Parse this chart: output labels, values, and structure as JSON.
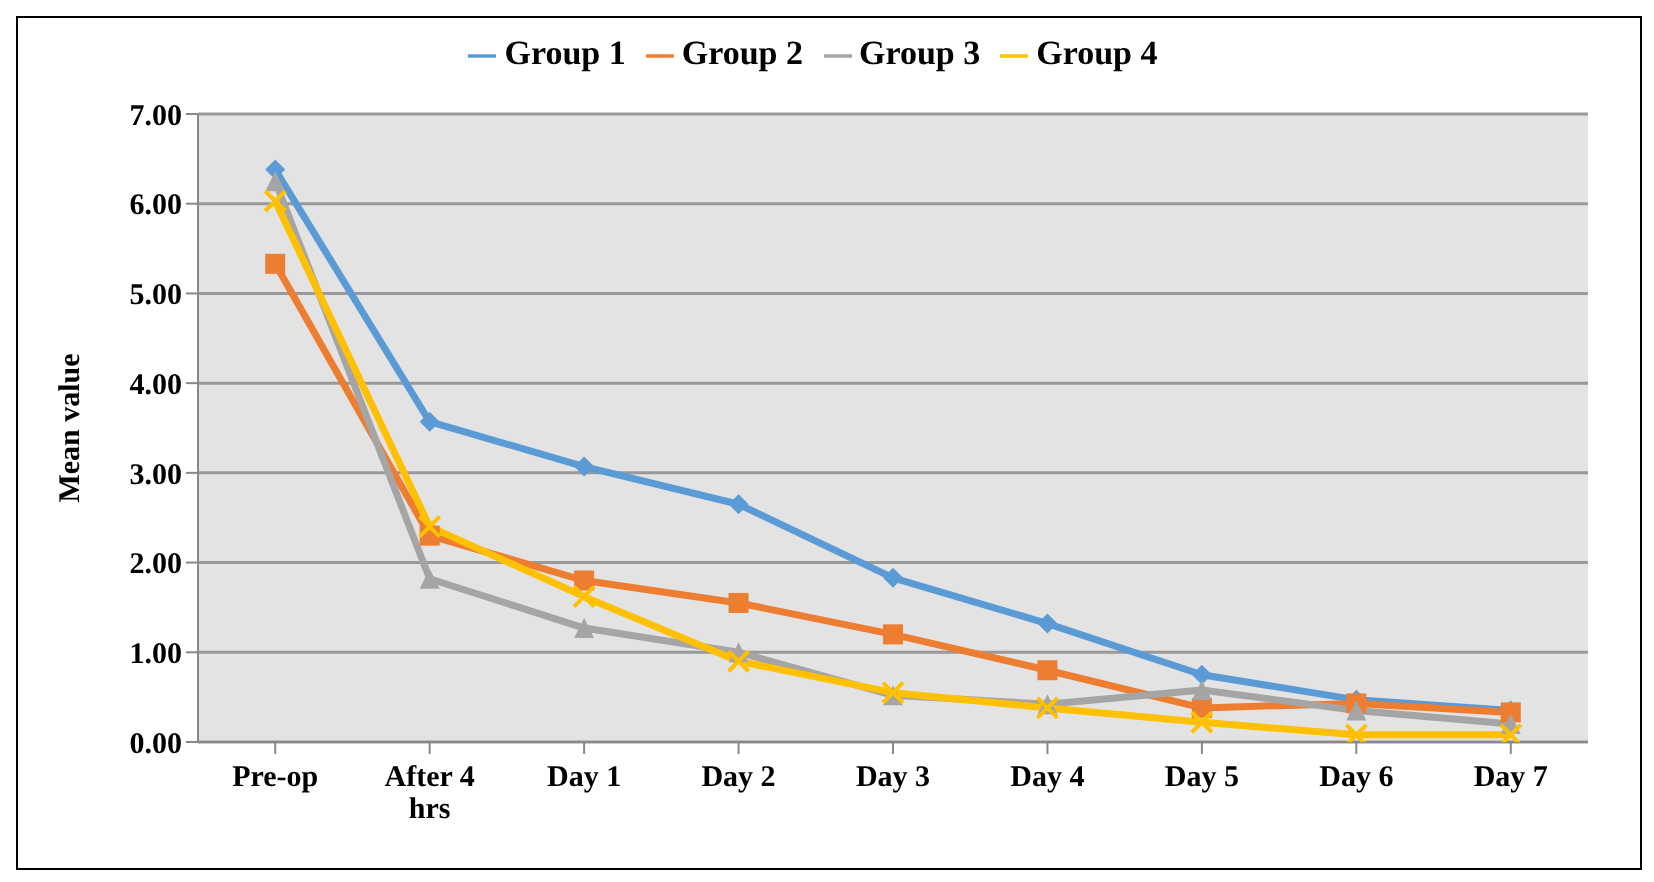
{
  "chart_data": {
    "type": "line",
    "ylabel": "Mean value",
    "categories": [
      "Pre-op",
      "After 4 hrs",
      "Day 1",
      "Day 2",
      "Day 3",
      "Day 4",
      "Day 5",
      "Day 6",
      "Day 7"
    ],
    "series": [
      {
        "name": "Group 1",
        "color": "#5b9bd5",
        "marker": "diamond",
        "values": [
          6.38,
          3.57,
          3.07,
          2.65,
          1.83,
          1.32,
          0.75,
          0.47,
          0.35
        ]
      },
      {
        "name": "Group 2",
        "color": "#ed7d31",
        "marker": "square",
        "values": [
          5.33,
          2.3,
          1.8,
          1.55,
          1.2,
          0.8,
          0.38,
          0.43,
          0.33
        ]
      },
      {
        "name": "Group 3",
        "color": "#a5a5a5",
        "marker": "triangle",
        "values": [
          6.25,
          1.82,
          1.27,
          1.0,
          0.52,
          0.42,
          0.58,
          0.35,
          0.2
        ]
      },
      {
        "name": "Group 4",
        "color": "#ffc000",
        "marker": "cross",
        "values": [
          6.03,
          2.4,
          1.62,
          0.9,
          0.55,
          0.38,
          0.22,
          0.08,
          0.08
        ]
      }
    ],
    "ylim": [
      0,
      7
    ],
    "yticks": [
      {
        "value": 0,
        "label": "0.00"
      },
      {
        "value": 1,
        "label": "1.00"
      },
      {
        "value": 2,
        "label": "2.00"
      },
      {
        "value": 3,
        "label": "3.00"
      },
      {
        "value": 4,
        "label": "4.00"
      },
      {
        "value": 5,
        "label": "5.00"
      },
      {
        "value": 6,
        "label": "6.00"
      },
      {
        "value": 7,
        "label": "7.00"
      }
    ],
    "grid": "y",
    "legend": "top"
  }
}
